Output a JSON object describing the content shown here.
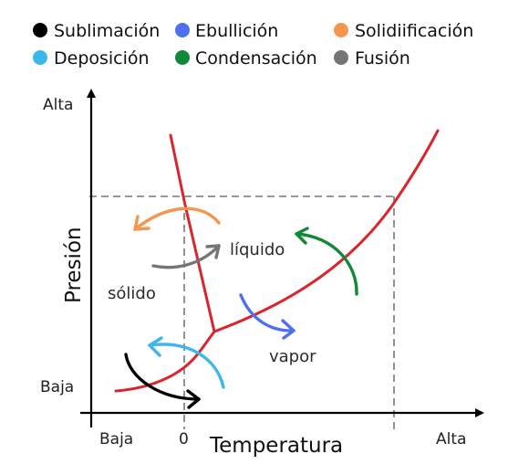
{
  "legend": [
    {
      "label": "Sublimación",
      "color": "#000000"
    },
    {
      "label": "Ebullición",
      "color": "#4f6ff0"
    },
    {
      "label": "Solidiificación",
      "color": "#f4964e"
    },
    {
      "label": "Deposición",
      "color": "#3db6ec"
    },
    {
      "label": "Condensación",
      "color": "#108a38"
    },
    {
      "label": "Fusión",
      "color": "#757575"
    }
  ],
  "axes": {
    "y_title": "Presión",
    "x_title": "Temperatura",
    "y_high": "Alta",
    "y_low": "Baja",
    "x_low": "Baja",
    "x_zero": "0",
    "x_high": "Alta"
  },
  "regions": {
    "solid": "sólido",
    "liquid": "líquido",
    "gas": "vapor"
  },
  "colors": {
    "phase_lines": "#d9262e",
    "guides": "#777777",
    "axis": "#000000"
  }
}
